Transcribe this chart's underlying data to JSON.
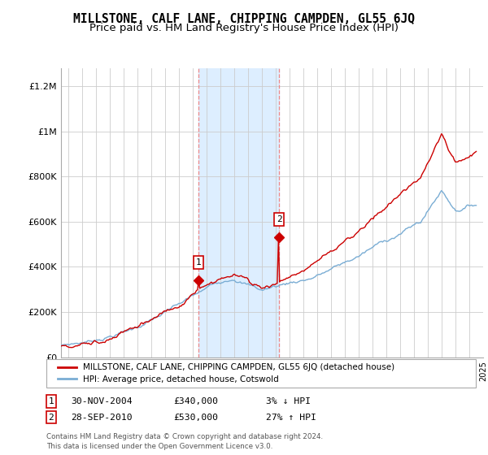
{
  "title": "MILLSTONE, CALF LANE, CHIPPING CAMPDEN, GL55 6JQ",
  "subtitle": "Price paid vs. HM Land Registry's House Price Index (HPI)",
  "ylabel_ticks": [
    "£0",
    "£200K",
    "£400K",
    "£600K",
    "£800K",
    "£1M",
    "£1.2M"
  ],
  "ytick_values": [
    0,
    200000,
    400000,
    600000,
    800000,
    1000000,
    1200000
  ],
  "ylim": [
    0,
    1280000
  ],
  "xlim_start": 1995.0,
  "xlim_end": 2025.5,
  "sale1_date": 2004.917,
  "sale1_label": "1",
  "sale1_price": 340000,
  "sale2_date": 2010.75,
  "sale2_label": "2",
  "sale2_price": 530000,
  "shaded_color": "#ddeeff",
  "hpi_line_color": "#7aadd4",
  "price_line_color": "#cc0000",
  "sale_marker_color": "#cc0000",
  "dashed_line_color": "#ee8888",
  "grid_color": "#cccccc",
  "background_color": "#ffffff",
  "legend_box_label1": "MILLSTONE, CALF LANE, CHIPPING CAMPDEN, GL55 6JQ (detached house)",
  "legend_box_label2": "HPI: Average price, detached house, Cotswold",
  "table_row1": [
    "1",
    "30-NOV-2004",
    "£340,000",
    "3% ↓ HPI"
  ],
  "table_row2": [
    "2",
    "28-SEP-2010",
    "£530,000",
    "27% ↑ HPI"
  ],
  "footer_text": "Contains HM Land Registry data © Crown copyright and database right 2024.\nThis data is licensed under the Open Government Licence v3.0.",
  "title_fontsize": 10.5,
  "subtitle_fontsize": 9.5,
  "tick_fontsize": 8
}
